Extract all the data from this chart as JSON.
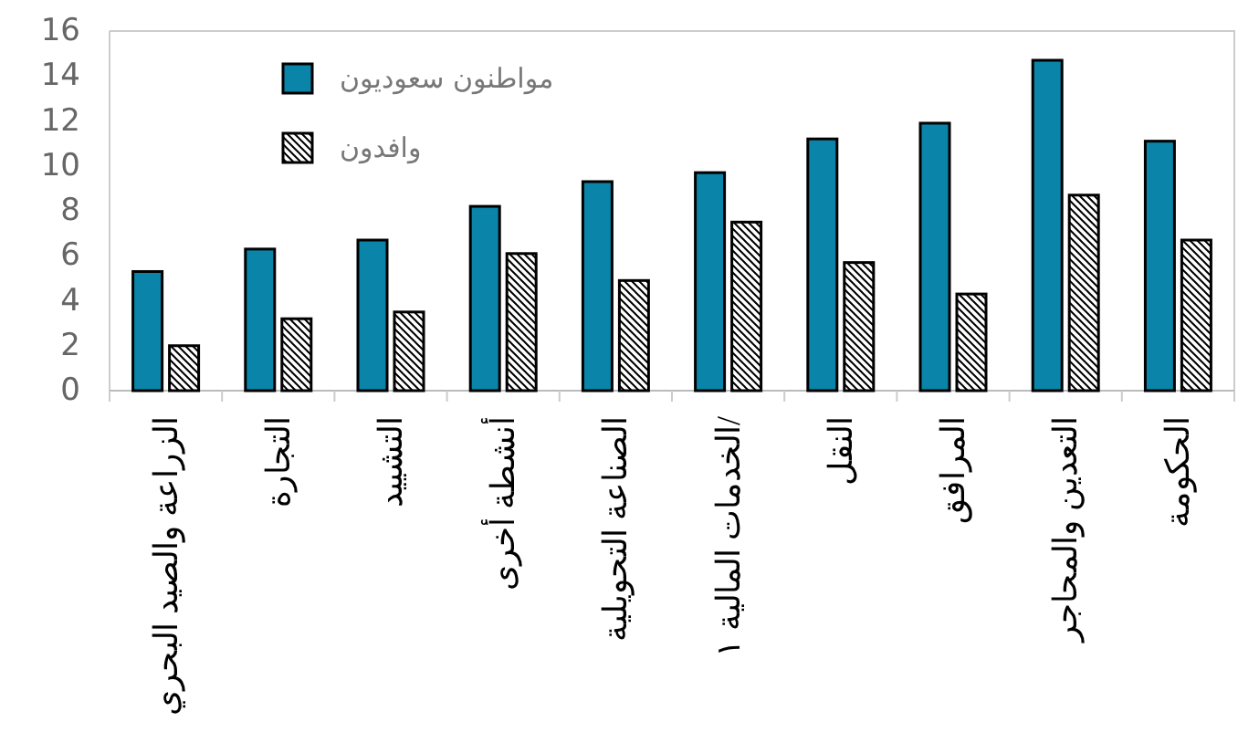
{
  "chart_data": {
    "type": "bar",
    "categories": [
      "الزراعة والصيد البحري",
      "التجارة",
      "التشييد",
      "أنشطة أخرى",
      "الصناعة التحويلية",
      "الخدمات المالية ١/",
      "النقل",
      "المرافق",
      "التعدين والمحاجر",
      "الحكومة"
    ],
    "series": [
      {
        "name": "مواطنون سعوديون",
        "color": "#0a84a8",
        "values": [
          5.3,
          6.3,
          6.7,
          8.2,
          9.3,
          9.7,
          11.2,
          11.9,
          14.7,
          11.1
        ]
      },
      {
        "name": "وافدون",
        "color": "#000000",
        "values": [
          2.0,
          3.2,
          3.5,
          6.1,
          4.9,
          7.5,
          5.7,
          4.3,
          8.7,
          6.7
        ]
      }
    ],
    "ylim": [
      0,
      16
    ],
    "yticks": [
      0,
      2,
      4,
      6,
      8,
      10,
      12,
      14,
      16
    ],
    "grid": false,
    "legend": "top left"
  }
}
